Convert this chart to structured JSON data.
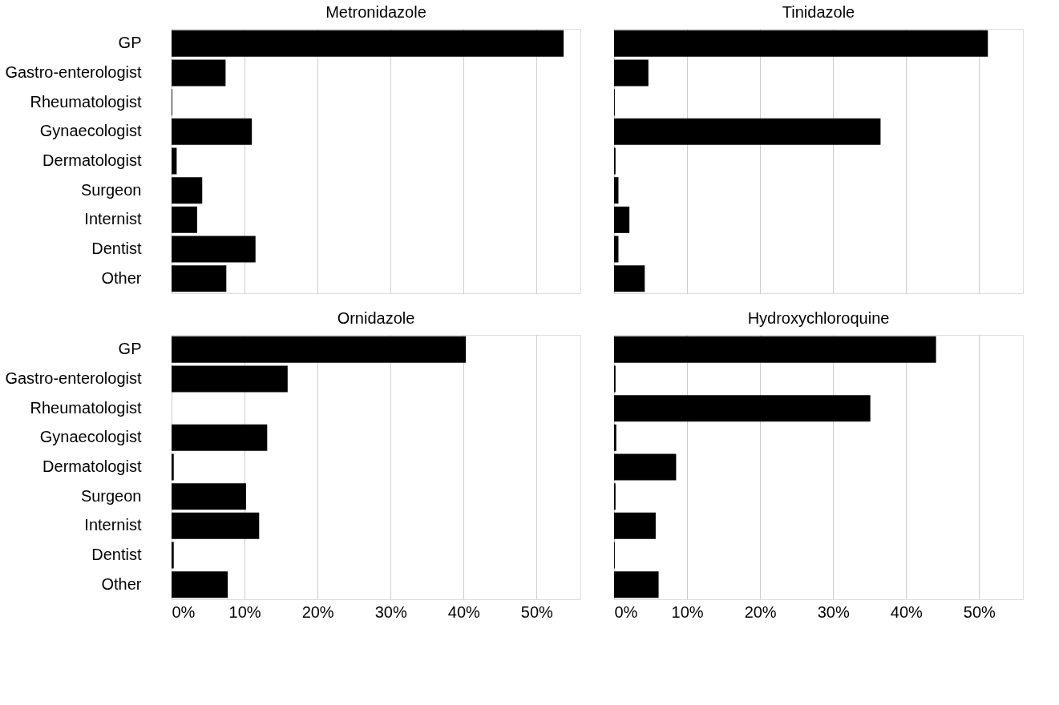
{
  "chart_data": [
    {
      "type": "bar",
      "orientation": "horizontal",
      "title": "Metronidazole",
      "categories": [
        "GP",
        "Gastro-enterologist",
        "Rheumatologist",
        "Gynaecologist",
        "Dermatologist",
        "Surgeon",
        "Internist",
        "Dentist",
        "Other"
      ],
      "values": [
        53.7,
        7.4,
        0.1,
        11.0,
        0.7,
        4.2,
        3.5,
        11.5,
        7.5
      ],
      "color": "#000000",
      "xlim": [
        0,
        56
      ],
      "xticks": [
        {
          "value": 0,
          "label": null
        },
        {
          "value": 10,
          "label": null
        },
        {
          "value": 20,
          "label": null
        },
        {
          "value": 30,
          "label": null
        },
        {
          "value": 40,
          "label": null
        },
        {
          "value": 50,
          "label": null
        }
      ],
      "grid": "x",
      "tick_labels": "y"
    },
    {
      "type": "bar",
      "orientation": "horizontal",
      "title": "Tinidazole",
      "categories": [
        null,
        null,
        null,
        null,
        null,
        null,
        null,
        null,
        null
      ],
      "values": [
        51.2,
        4.7,
        0.1,
        36.5,
        0.2,
        0.6,
        2.1,
        0.6,
        4.2
      ],
      "color": "#000000",
      "xlim": [
        0,
        56
      ],
      "xticks": [
        {
          "value": 0,
          "label": null
        },
        {
          "value": 10,
          "label": null
        },
        {
          "value": 20,
          "label": null
        },
        {
          "value": 30,
          "label": null
        },
        {
          "value": 40,
          "label": null
        },
        {
          "value": 50,
          "label": null
        }
      ],
      "grid": "x",
      "tick_labels": false
    },
    {
      "type": "bar",
      "orientation": "horizontal",
      "title": "Ornidazole",
      "categories": [
        "GP",
        "Gastro-enterologist",
        "Rheumatologist",
        "Gynaecologist",
        "Dermatologist",
        "Surgeon",
        "Internist",
        "Dentist",
        "Other"
      ],
      "values": [
        40.3,
        15.9,
        0,
        13.1,
        0.3,
        10.2,
        12.0,
        0.3,
        7.7
      ],
      "color": "#000000",
      "xlim": [
        0,
        56
      ],
      "xticks": [
        {
          "value": 0,
          "label": "0%"
        },
        {
          "value": 10,
          "label": "10%"
        },
        {
          "value": 20,
          "label": "20%"
        },
        {
          "value": 30,
          "label": "30%"
        },
        {
          "value": 40,
          "label": "40%"
        },
        {
          "value": 50,
          "label": "50%"
        }
      ],
      "grid": "x"
    },
    {
      "type": "bar",
      "orientation": "horizontal",
      "title": "Hydroxychloroquine",
      "categories": [
        null,
        null,
        null,
        null,
        null,
        null,
        null,
        null,
        null
      ],
      "values": [
        44.1,
        0.2,
        35.1,
        0.3,
        8.5,
        0.2,
        5.7,
        0.1,
        6.1
      ],
      "color": "#000000",
      "xlim": [
        0,
        56
      ],
      "xticks": [
        {
          "value": 0,
          "label": "0%"
        },
        {
          "value": 10,
          "label": "10%"
        },
        {
          "value": 20,
          "label": "20%"
        },
        {
          "value": 30,
          "label": "30%"
        },
        {
          "value": 40,
          "label": "40%"
        },
        {
          "value": 50,
          "label": "50%"
        }
      ],
      "grid": "x",
      "tick_labels": "x"
    }
  ]
}
